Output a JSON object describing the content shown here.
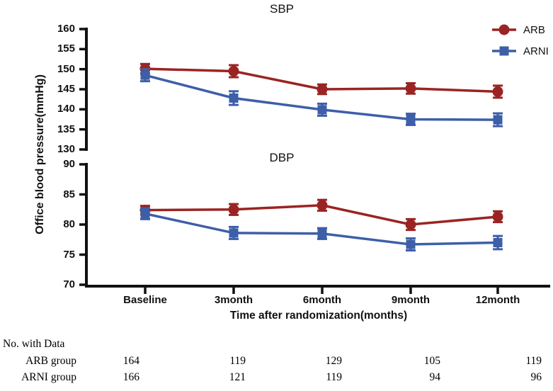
{
  "chart_data": [
    {
      "type": "line",
      "title": "SBP",
      "categories": [
        "Baseline",
        "3month",
        "6month",
        "9month",
        "12month"
      ],
      "xlabel": "Time after randomization(months)",
      "ylabel": "Office blood pressure(mmHg)",
      "ylim": [
        130,
        160
      ],
      "yticks": [
        160,
        155,
        150,
        145,
        140,
        135,
        130
      ],
      "grid": false,
      "legend_position": "top-right",
      "series": [
        {
          "name": "ARB",
          "marker": "circle",
          "color": "#9A2423",
          "values": [
            150.1,
            149.5,
            145.0,
            145.2,
            144.4
          ],
          "errors": [
            1.2,
            1.5,
            1.2,
            1.3,
            1.5
          ]
        },
        {
          "name": "ARNI",
          "marker": "square",
          "color": "#3D5FA8",
          "values": [
            148.5,
            142.8,
            139.9,
            137.5,
            137.4
          ],
          "errors": [
            1.5,
            1.7,
            1.5,
            1.4,
            1.6
          ]
        }
      ]
    },
    {
      "type": "line",
      "title": "DBP",
      "categories": [
        "Baseline",
        "3month",
        "6month",
        "9month",
        "12month"
      ],
      "ylim": [
        70,
        90
      ],
      "yticks": [
        90,
        85,
        80,
        75,
        70
      ],
      "grid": false,
      "series": [
        {
          "name": "ARB",
          "marker": "circle",
          "color": "#9A2423",
          "values": [
            82.4,
            82.5,
            83.2,
            80.0,
            81.3
          ],
          "errors": [
            0.7,
            0.9,
            0.9,
            0.9,
            0.9
          ]
        },
        {
          "name": "ARNI",
          "marker": "square",
          "color": "#3D5FA8",
          "values": [
            81.8,
            78.6,
            78.5,
            76.7,
            77.0
          ],
          "errors": [
            0.9,
            1.0,
            0.9,
            1.0,
            1.1
          ]
        }
      ]
    }
  ],
  "legend": {
    "items": [
      {
        "label": "ARB",
        "marker": "circle",
        "color": "#9A2423"
      },
      {
        "label": "ARNI",
        "marker": "square",
        "color": "#3D5FA8"
      }
    ]
  },
  "table": {
    "heading": "No. with Data",
    "rows": [
      {
        "label": "ARB group",
        "values": [
          "164",
          "119",
          "129",
          "105",
          "119"
        ]
      },
      {
        "label": "ARNI group",
        "values": [
          "166",
          "121",
          "119",
          "94",
          "96"
        ]
      }
    ]
  },
  "colors": {
    "axis": "#111111",
    "arb": "#9A2423",
    "arni": "#3D5FA8"
  }
}
